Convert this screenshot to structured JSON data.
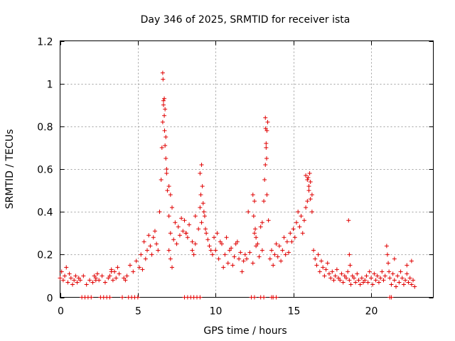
{
  "chart_data": {
    "type": "scatter",
    "title": "Day 346 of 2025, SRMTID for receiver ista",
    "xlabel": "GPS time / hours",
    "ylabel": "SRMTID / TECUs",
    "xlim": [
      0,
      24
    ],
    "ylim": [
      0,
      1.2
    ],
    "xticks": [
      0,
      5,
      10,
      15,
      20
    ],
    "xtick_labels": [
      "0",
      "5",
      "10",
      "15",
      "20"
    ],
    "yticks": [
      0,
      0.2,
      0.4,
      0.6,
      0.8,
      1.0,
      1.2
    ],
    "ytick_labels": [
      "0",
      "0.2",
      "0.4",
      "0.6",
      "0.8",
      "1",
      "1.2"
    ],
    "grid": true,
    "marker": "plus",
    "color": "#e00000",
    "series": [
      {
        "name": "SRMTID",
        "x": [
          0.0,
          0.1,
          0.2,
          0.3,
          0.4,
          0.5,
          0.6,
          0.7,
          0.8,
          0.9,
          1.0,
          1.1,
          1.2,
          1.3,
          1.5,
          1.7,
          1.9,
          2.1,
          2.3,
          2.5,
          2.7,
          2.9,
          3.1,
          3.3,
          2.2,
          2.3,
          2.4,
          3.2,
          3.3,
          3.4,
          3.5,
          3.6,
          3.7,
          3.8,
          4.1,
          4.2,
          4.3,
          4.5,
          4.7,
          4.9,
          5.1,
          5.2,
          5.3,
          5.4,
          5.5,
          5.6,
          5.7,
          5.8,
          5.9,
          6.0,
          6.1,
          6.2,
          6.3,
          6.4,
          6.5,
          6.55,
          6.6,
          6.65,
          6.7,
          6.75,
          6.8,
          6.85,
          6.9,
          7.0,
          7.1,
          6.6,
          6.62,
          6.65,
          6.7,
          6.72,
          6.75,
          6.8,
          6.85,
          7.0,
          7.1,
          7.2,
          7.3,
          7.4,
          7.5,
          7.6,
          7.7,
          7.8,
          7.9,
          8.0,
          8.1,
          8.2,
          7.0,
          7.1,
          7.2,
          8.1,
          8.3,
          8.5,
          8.7,
          8.9,
          9.0,
          9.1,
          8.5,
          8.6,
          8.7,
          9.0,
          9.05,
          9.1,
          9.15,
          9.2,
          9.25,
          9.3,
          9.35,
          9.4,
          9.5,
          9.6,
          9.7,
          9.8,
          9.9,
          10.0,
          10.2,
          10.4,
          10.6,
          10.8,
          11.0,
          11.2,
          11.4,
          11.6,
          11.8,
          10.1,
          10.3,
          10.5,
          10.7,
          10.9,
          11.1,
          11.3,
          11.5,
          11.7,
          11.9,
          12.0,
          12.2,
          12.4,
          12.6,
          12.8,
          13.0,
          12.1,
          12.5,
          12.7,
          12.9,
          12.4,
          12.45,
          12.5,
          12.55,
          12.6,
          13.0,
          13.1,
          13.15,
          13.2,
          13.25,
          13.3,
          13.35,
          13.4,
          13.2,
          13.22,
          13.25,
          13.28,
          13.3,
          13.5,
          13.6,
          13.7,
          13.8,
          13.9,
          14.0,
          14.1,
          14.2,
          14.3,
          14.4,
          14.5,
          14.6,
          14.7,
          14.8,
          14.9,
          15.0,
          15.1,
          15.2,
          15.3,
          15.4,
          15.5,
          15.6,
          15.7,
          15.8,
          15.9,
          16.0,
          16.1,
          16.2,
          15.8,
          15.9,
          16.0,
          16.1,
          16.2,
          16.05,
          15.95,
          16.3,
          16.4,
          16.5,
          16.6,
          16.7,
          16.8,
          16.9,
          17.0,
          17.1,
          17.2,
          17.3,
          17.4,
          17.5,
          17.6,
          17.7,
          17.8,
          17.9,
          18.0,
          18.1,
          18.2,
          18.3,
          18.4,
          18.5,
          18.6,
          18.7,
          18.8,
          18.9,
          19.0,
          19.1,
          19.2,
          19.3,
          19.4,
          19.5,
          18.55,
          18.6,
          18.65,
          19.6,
          19.7,
          19.8,
          19.9,
          20.0,
          20.1,
          20.2,
          20.3,
          20.4,
          20.5,
          20.6,
          20.7,
          20.8,
          20.9,
          21.0,
          21.05,
          21.1,
          21.15,
          21.2,
          21.3,
          21.4,
          21.5,
          21.6,
          21.7,
          21.8,
          21.9,
          22.0,
          22.1,
          22.2,
          22.3,
          22.4,
          22.5,
          22.6,
          22.7,
          22.8,
          21.5,
          22.3,
          22.6,
          1.4,
          1.6,
          1.8,
          2.0,
          2.6,
          2.8,
          3.0,
          3.2,
          4.0,
          4.4,
          4.6,
          4.8,
          5.0,
          8.0,
          8.2,
          8.4,
          8.6,
          8.8,
          9.0,
          12.3,
          12.5,
          12.9,
          13.1,
          13.6,
          13.7,
          13.9,
          21.2,
          21.3
        ],
        "y": [
          0.09,
          0.12,
          0.08,
          0.1,
          0.14,
          0.07,
          0.11,
          0.09,
          0.06,
          0.08,
          0.1,
          0.07,
          0.09,
          0.08,
          0.1,
          0.06,
          0.08,
          0.07,
          0.09,
          0.08,
          0.1,
          0.07,
          0.09,
          0.12,
          0.1,
          0.08,
          0.11,
          0.1,
          0.13,
          0.08,
          0.12,
          0.09,
          0.14,
          0.11,
          0.09,
          0.08,
          0.1,
          0.15,
          0.12,
          0.17,
          0.14,
          0.2,
          0.13,
          0.26,
          0.18,
          0.22,
          0.29,
          0.24,
          0.2,
          0.28,
          0.31,
          0.25,
          0.22,
          0.4,
          0.55,
          0.7,
          0.82,
          0.9,
          0.93,
          0.88,
          0.75,
          0.6,
          0.5,
          0.52,
          0.48,
          1.05,
          1.02,
          0.92,
          0.85,
          0.78,
          0.71,
          0.65,
          0.58,
          0.38,
          0.3,
          0.42,
          0.27,
          0.35,
          0.25,
          0.33,
          0.29,
          0.37,
          0.31,
          0.36,
          0.3,
          0.28,
          0.22,
          0.18,
          0.14,
          0.3,
          0.34,
          0.26,
          0.38,
          0.32,
          0.42,
          0.35,
          0.22,
          0.2,
          0.25,
          0.58,
          0.48,
          0.62,
          0.52,
          0.44,
          0.4,
          0.38,
          0.32,
          0.3,
          0.27,
          0.24,
          0.22,
          0.2,
          0.28,
          0.22,
          0.18,
          0.25,
          0.2,
          0.16,
          0.23,
          0.19,
          0.26,
          0.21,
          0.17,
          0.3,
          0.26,
          0.14,
          0.28,
          0.22,
          0.15,
          0.25,
          0.18,
          0.12,
          0.2,
          0.18,
          0.21,
          0.16,
          0.24,
          0.19,
          0.22,
          0.4,
          0.3,
          0.25,
          0.33,
          0.48,
          0.38,
          0.45,
          0.32,
          0.28,
          0.35,
          0.45,
          0.55,
          0.62,
          0.7,
          0.78,
          0.82,
          0.36,
          0.84,
          0.79,
          0.72,
          0.65,
          0.48,
          0.18,
          0.22,
          0.15,
          0.2,
          0.25,
          0.19,
          0.24,
          0.17,
          0.22,
          0.28,
          0.2,
          0.26,
          0.21,
          0.3,
          0.26,
          0.32,
          0.28,
          0.35,
          0.4,
          0.33,
          0.38,
          0.3,
          0.36,
          0.42,
          0.45,
          0.5,
          0.54,
          0.48,
          0.57,
          0.55,
          0.52,
          0.46,
          0.4,
          0.58,
          0.56,
          0.22,
          0.18,
          0.15,
          0.2,
          0.12,
          0.17,
          0.14,
          0.1,
          0.13,
          0.16,
          0.11,
          0.09,
          0.12,
          0.08,
          0.1,
          0.13,
          0.09,
          0.08,
          0.11,
          0.07,
          0.1,
          0.09,
          0.12,
          0.08,
          0.06,
          0.1,
          0.09,
          0.07,
          0.11,
          0.08,
          0.06,
          0.09,
          0.07,
          0.36,
          0.2,
          0.15,
          0.08,
          0.1,
          0.07,
          0.12,
          0.09,
          0.06,
          0.11,
          0.08,
          0.1,
          0.07,
          0.09,
          0.12,
          0.08,
          0.1,
          0.24,
          0.2,
          0.16,
          0.12,
          0.09,
          0.06,
          0.11,
          0.08,
          0.05,
          0.1,
          0.07,
          0.12,
          0.09,
          0.06,
          0.08,
          0.11,
          0.07,
          0.09,
          0.06,
          0.08,
          0.05,
          0.18,
          0.15,
          0.17,
          0.0,
          0.0,
          0.0,
          0.0,
          0.0,
          0.0,
          0.0,
          0.0,
          0.0,
          0.0,
          0.0,
          0.0,
          0.0,
          0.0,
          0.0,
          0.0,
          0.0,
          0.0,
          0.0,
          0.0,
          0.0,
          0.0,
          0.0,
          0.0,
          0.0,
          0.0,
          0.0,
          0.0
        ]
      }
    ]
  }
}
